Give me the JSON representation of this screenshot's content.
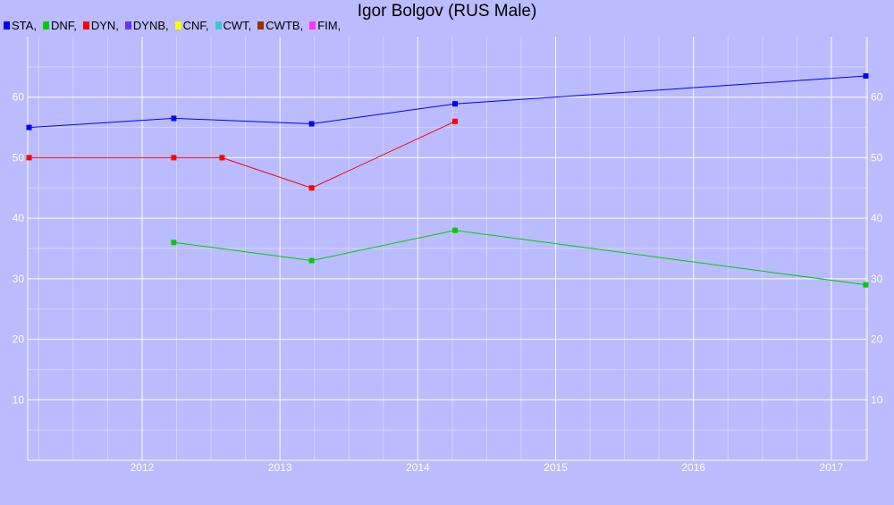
{
  "chart_data": {
    "type": "line",
    "title": "Igor Bolgov (RUS Male)",
    "xlabel": "",
    "ylabel": "",
    "xlim": [
      2011.17,
      2017.26
    ],
    "ylim": [
      0,
      70
    ],
    "x_ticks": [
      "2012",
      "2013",
      "2014",
      "2015",
      "2016",
      "2017"
    ],
    "y_ticks": [
      "10",
      "20",
      "30",
      "40",
      "50",
      "60"
    ],
    "grid": true,
    "legend_position": "top-left",
    "legend": [
      {
        "label": "STA,",
        "color": "#0000ff"
      },
      {
        "label": "DNF,",
        "color": "#00cc00"
      },
      {
        "label": "DYN,",
        "color": "#ff0000"
      },
      {
        "label": "DYNB,",
        "color": "#6633ff"
      },
      {
        "label": "CNF,",
        "color": "#ffff00"
      },
      {
        "label": "CWT,",
        "color": "#33cccc"
      },
      {
        "label": "CWTB,",
        "color": "#993300"
      },
      {
        "label": "FIM,",
        "color": "#ff33ff"
      }
    ],
    "series": [
      {
        "name": "STA",
        "color": "#0000ff",
        "points": [
          [
            2011.18,
            55
          ],
          [
            2012.23,
            56.5
          ],
          [
            2013.23,
            55.6
          ],
          [
            2014.27,
            58.9
          ],
          [
            2017.25,
            63.5
          ]
        ]
      },
      {
        "name": "DNF",
        "color": "#00cc00",
        "points": [
          [
            2012.23,
            36
          ],
          [
            2013.23,
            33
          ],
          [
            2014.27,
            38
          ],
          [
            2017.25,
            29
          ]
        ]
      },
      {
        "name": "DYN",
        "color": "#ff0000",
        "points": [
          [
            2011.18,
            50
          ],
          [
            2012.23,
            50
          ],
          [
            2012.58,
            50
          ],
          [
            2013.23,
            45
          ],
          [
            2014.27,
            56
          ]
        ]
      }
    ]
  }
}
